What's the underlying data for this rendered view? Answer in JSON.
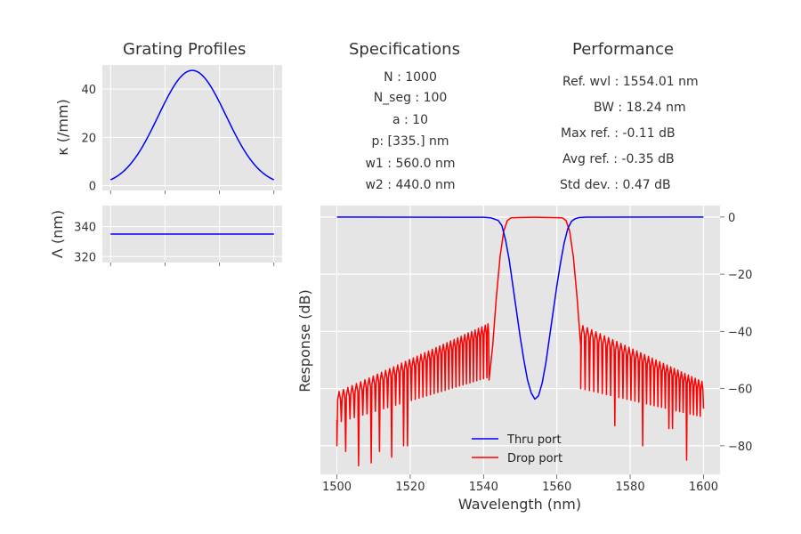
{
  "headers": {
    "grating": "Grating Profiles",
    "specs": "Specifications",
    "performance": "Performance"
  },
  "specifications": [
    "N : 1000",
    "N_seg : 100",
    "a : 10",
    "p: [335.] nm",
    "w1 : 560.0 nm",
    "w2 : 440.0 nm"
  ],
  "performance": [
    "Ref. wvl : 1554.01 nm",
    "BW : 18.24 nm",
    "Max ref. : -0.11 dB",
    "Avg ref. : -0.35 dB",
    "Std dev. : 0.47 dB"
  ],
  "colors": {
    "thru": "#0000ff",
    "drop": "#ff0000",
    "axes_bg": "#e5e5e5",
    "grid": "#ffffff"
  },
  "chart_data": [
    {
      "type": "line",
      "id": "kappa",
      "ylabel": "κ (/mm)",
      "ylim": [
        -2,
        50
      ],
      "yticks": [
        0,
        20,
        40
      ],
      "xlim": [
        -5,
        104
      ],
      "x_tick_positions": [
        0,
        33,
        66,
        99
      ],
      "series": [
        {
          "name": "kappa",
          "shape": "gaussian",
          "x_range": [
            0,
            99
          ],
          "peak": 48,
          "center": 49.5,
          "sigma": 20.6,
          "baseline_shift": 0.26
        }
      ]
    },
    {
      "type": "line",
      "id": "period",
      "ylabel": "Λ (nm)",
      "ylim": [
        316,
        354
      ],
      "yticks": [
        320,
        340
      ],
      "xlim": [
        -5,
        104
      ],
      "x_tick_positions": [
        0,
        33,
        66,
        99
      ],
      "series": [
        {
          "name": "period",
          "x": [
            0,
            99
          ],
          "y": [
            335,
            335
          ]
        }
      ]
    },
    {
      "type": "line",
      "id": "response",
      "xlabel": "Wavelength (nm)",
      "ylabel": "Response (dB)",
      "xlim": [
        1495.5,
        1604.5
      ],
      "ylim": [
        -90,
        4
      ],
      "xticks": [
        1500,
        1520,
        1540,
        1560,
        1580,
        1600
      ],
      "yticks": [
        0,
        -20,
        -40,
        -60,
        -80
      ],
      "yaxis_side": "right",
      "legend": {
        "position": "bottom-center",
        "entries": [
          "Thru port",
          "Drop port"
        ]
      },
      "series": [
        {
          "name": "Thru port",
          "x": [
            1500,
            1540,
            1542,
            1544,
            1545,
            1546,
            1547,
            1548,
            1549,
            1550,
            1551,
            1552,
            1553,
            1554,
            1555,
            1556,
            1557,
            1558,
            1559,
            1560,
            1561,
            1562,
            1563,
            1564,
            1565,
            1566,
            1568,
            1600
          ],
          "y": [
            0,
            -0.1,
            -0.3,
            -1.2,
            -3,
            -8,
            -15,
            -24,
            -33,
            -42,
            -50,
            -57,
            -61.5,
            -63.7,
            -62.5,
            -58,
            -51,
            -42,
            -33,
            -24,
            -16,
            -9,
            -4,
            -1.5,
            -0.6,
            -0.2,
            -0.05,
            0
          ]
        },
        {
          "name": "Drop port",
          "x": [
            1541.5,
            1542.5,
            1543.5,
            1544.5,
            1545.5,
            1546.5,
            1547.5,
            1550,
            1554,
            1558,
            1561.5,
            1562.5,
            1563.5,
            1564.5,
            1565.5,
            1566.5
          ],
          "y": [
            -57,
            -45,
            -28,
            -14,
            -5,
            -1.2,
            -0.3,
            -0.15,
            -0.1,
            -0.15,
            -0.3,
            -1.2,
            -5,
            -14,
            -28,
            -45
          ],
          "sidelobes": {
            "left": {
              "from": 1500,
              "to": 1541.5,
              "upper": [
                -61,
                -37
              ],
              "lower": [
                -72,
                -56
              ],
              "deep_nulls": [
                [
                  1500,
                  -80
                ],
                [
                  1501.9,
                  -82
                ],
                [
                  1505.6,
                  -87
                ],
                [
                  1509.2,
                  -86
                ],
                [
                  1511.1,
                  -82
                ],
                [
                  1515,
                  -84
                ],
                [
                  1518.7,
                  -80
                ]
              ]
            },
            "right": {
              "from": 1566.5,
              "to": 1600,
              "upper": [
                -38,
                -58
              ],
              "lower": [
                -60,
                -70
              ],
              "deep_nulls": [
                [
                  1576,
                  -73
                ],
                [
                  1583.5,
                  -80
                ],
                [
                  1591,
                  -74
                ],
                [
                  1595.5,
                  -85
                ]
              ]
            }
          }
        }
      ]
    }
  ]
}
